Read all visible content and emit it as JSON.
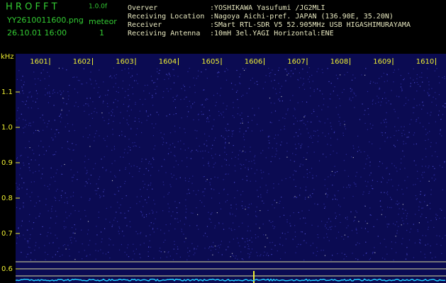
{
  "header": {
    "app": "H R O F F T",
    "version": "1.0.0f",
    "file": "YY2610011600.png",
    "detector": "meteor",
    "datetime": "26.10.01 16:00",
    "count": "1",
    "info": [
      {
        "label": "Overver",
        "value": ":YOSHIKAWA Yasufumi /JG2MLI"
      },
      {
        "label": "Receiving Location",
        "value": ":Nagoya Aichi-pref. JAPAN (136.90E, 35.20N)"
      },
      {
        "label": "Receiver",
        "value": ":SMart RTL-SDR V5 52.905MHz USB HIGASHIMURAYAMA"
      },
      {
        "label": "Receiving Antenna",
        "value": ":10mH 3el.YAGI Horizontal:ENE"
      }
    ]
  },
  "plot": {
    "y_unit": "kHz",
    "time_labels": [
      "1601",
      "1602",
      "1603",
      "1604",
      "1605",
      "1606",
      "1607",
      "1608",
      "1609",
      "1610"
    ],
    "freq_labels": [
      "1.1",
      "1.0",
      "0.9",
      "0.8",
      "0.7",
      "0.6"
    ]
  }
}
